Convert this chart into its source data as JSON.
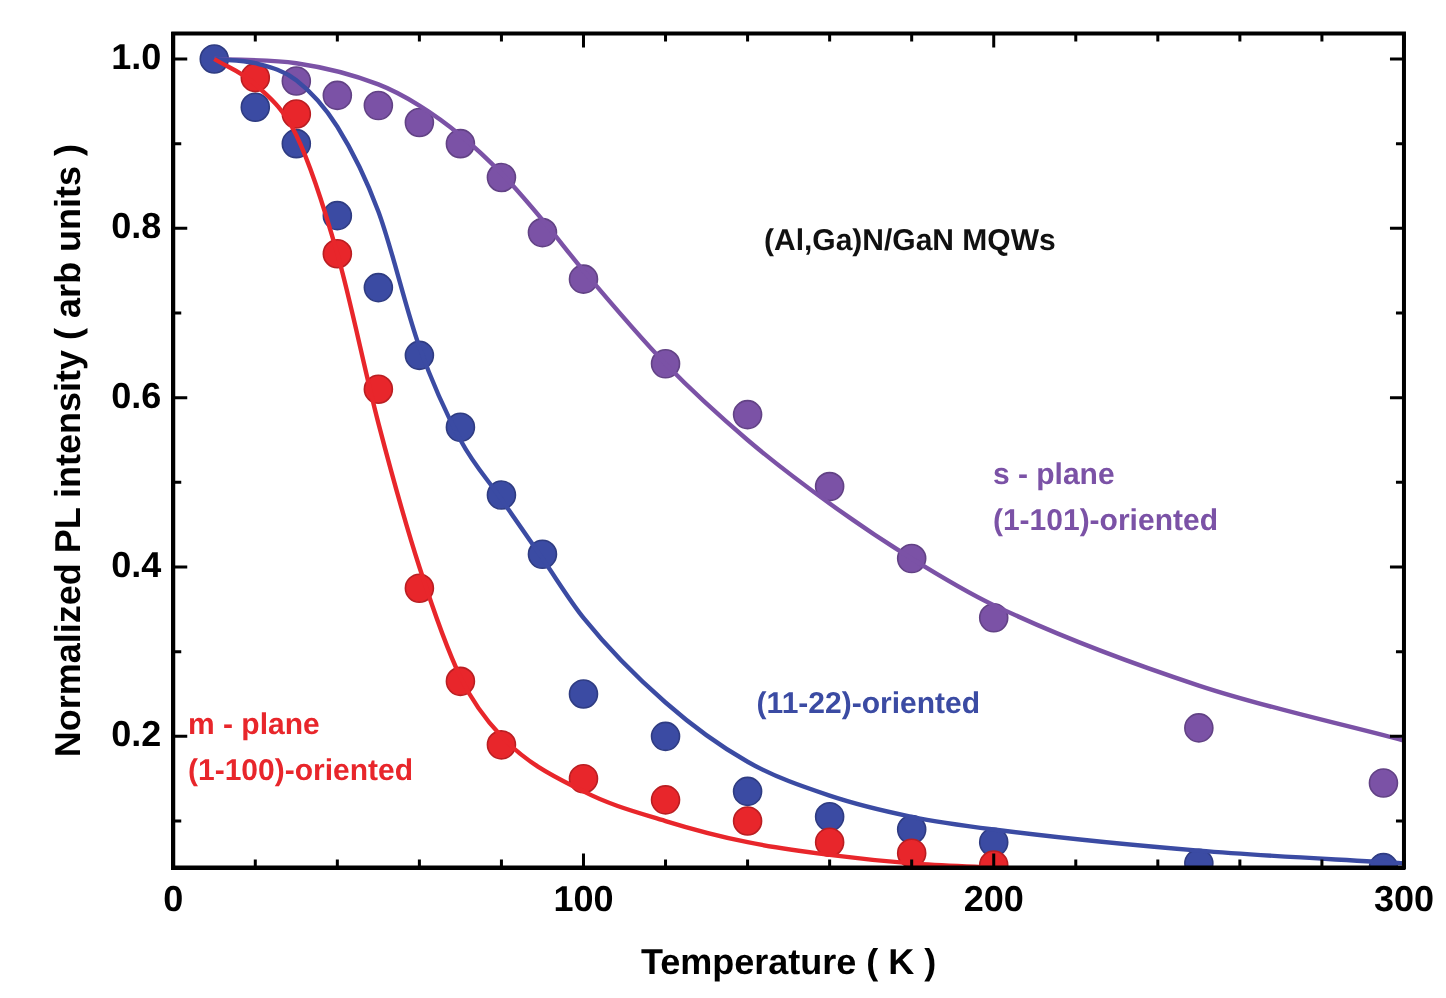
{
  "chart_data": {
    "type": "scatter",
    "xlabel": "Temperature ( K )",
    "ylabel": "Normalized PL intensity ( arb units )",
    "xlim": [
      0,
      300
    ],
    "xticks": [
      0,
      {
        "value": 20,
        "label": null
      },
      {
        "value": 40,
        "label": null
      },
      {
        "value": 60,
        "label": null
      },
      {
        "value": 80,
        "label": null
      },
      100,
      {
        "value": 120,
        "label": null
      },
      {
        "value": 140,
        "label": null
      },
      {
        "value": 160,
        "label": null
      },
      {
        "value": 180,
        "label": null
      },
      200,
      {
        "value": 220,
        "label": null
      },
      {
        "value": 240,
        "label": null
      },
      {
        "value": 260,
        "label": null
      },
      {
        "value": 280,
        "label": null
      },
      300
    ],
    "ylim": [
      0.045,
      1.03
    ],
    "yticks": [
      {
        "value": 0.1,
        "label": null
      },
      0.2,
      {
        "value": 0.3,
        "label": null
      },
      0.4,
      {
        "value": 0.5,
        "label": null
      },
      0.6,
      {
        "value": 0.7,
        "label": null
      },
      0.8,
      {
        "value": 0.9,
        "label": null
      },
      {
        "value": 1,
        "label": "1.0"
      }
    ],
    "grid": false,
    "legend": false,
    "series": [
      {
        "type": "line",
        "marker": "none",
        "color": "#e8262b",
        "x": [
          10,
          20,
          30,
          40,
          50,
          60,
          70,
          80,
          100,
          120,
          140,
          160,
          180,
          200
        ],
        "values": [
          1.0,
          0.97,
          0.91,
          0.77,
          0.57,
          0.4,
          0.27,
          0.2,
          0.135,
          0.1,
          0.075,
          0.06,
          0.05,
          0.045
        ]
      },
      {
        "type": "line",
        "marker": "none",
        "color": "#3b4ba3",
        "x": [
          10,
          20,
          30,
          40,
          50,
          60,
          70,
          80,
          90,
          100,
          120,
          140,
          160,
          180,
          200,
          250,
          300
        ],
        "values": [
          1.0,
          0.995,
          0.975,
          0.92,
          0.82,
          0.66,
          0.55,
          0.48,
          0.41,
          0.34,
          0.24,
          0.17,
          0.13,
          0.105,
          0.09,
          0.065,
          0.05
        ]
      },
      {
        "type": "line",
        "marker": "none",
        "color": "#7b52a6",
        "x": [
          10,
          30,
          50,
          60,
          70,
          80,
          90,
          100,
          120,
          140,
          160,
          180,
          200,
          250,
          300
        ],
        "values": [
          1.0,
          0.995,
          0.97,
          0.945,
          0.91,
          0.865,
          0.81,
          0.75,
          0.64,
          0.55,
          0.475,
          0.41,
          0.355,
          0.26,
          0.195
        ]
      },
      {
        "marker": "circle",
        "name": "m - plane (1-100)-oriented",
        "color": "#e8262b",
        "x": [
          20,
          30,
          40,
          50,
          60,
          70,
          80,
          100,
          120,
          140,
          160,
          180,
          200
        ],
        "values": [
          0.978,
          0.935,
          0.77,
          0.61,
          0.375,
          0.265,
          0.19,
          0.15,
          0.125,
          0.1,
          0.075,
          0.062,
          0.048
        ]
      },
      {
        "marker": "circle",
        "name": "(11-22)-oriented",
        "color": "#3b4ba3",
        "x": [
          10,
          20,
          30,
          40,
          50,
          60,
          70,
          80,
          90,
          100,
          120,
          140,
          160,
          180,
          200,
          250,
          295
        ],
        "values": [
          1.0,
          0.943,
          0.9,
          0.815,
          0.73,
          0.65,
          0.565,
          0.485,
          0.415,
          0.25,
          0.2,
          0.135,
          0.105,
          0.09,
          0.075,
          0.05,
          0.045
        ]
      },
      {
        "marker": "circle",
        "name": "s - plane (1-101)-oriented",
        "color": "#7b52a6",
        "x": [
          30,
          40,
          50,
          60,
          70,
          80,
          90,
          100,
          120,
          140,
          160,
          180,
          200,
          250,
          295
        ],
        "values": [
          0.974,
          0.957,
          0.945,
          0.925,
          0.9,
          0.86,
          0.795,
          0.74,
          0.64,
          0.58,
          0.495,
          0.41,
          0.34,
          0.21,
          0.145
        ]
      }
    ],
    "annotations": [
      "(Al,Ga)N/GaN MQWs"
    ]
  }
}
